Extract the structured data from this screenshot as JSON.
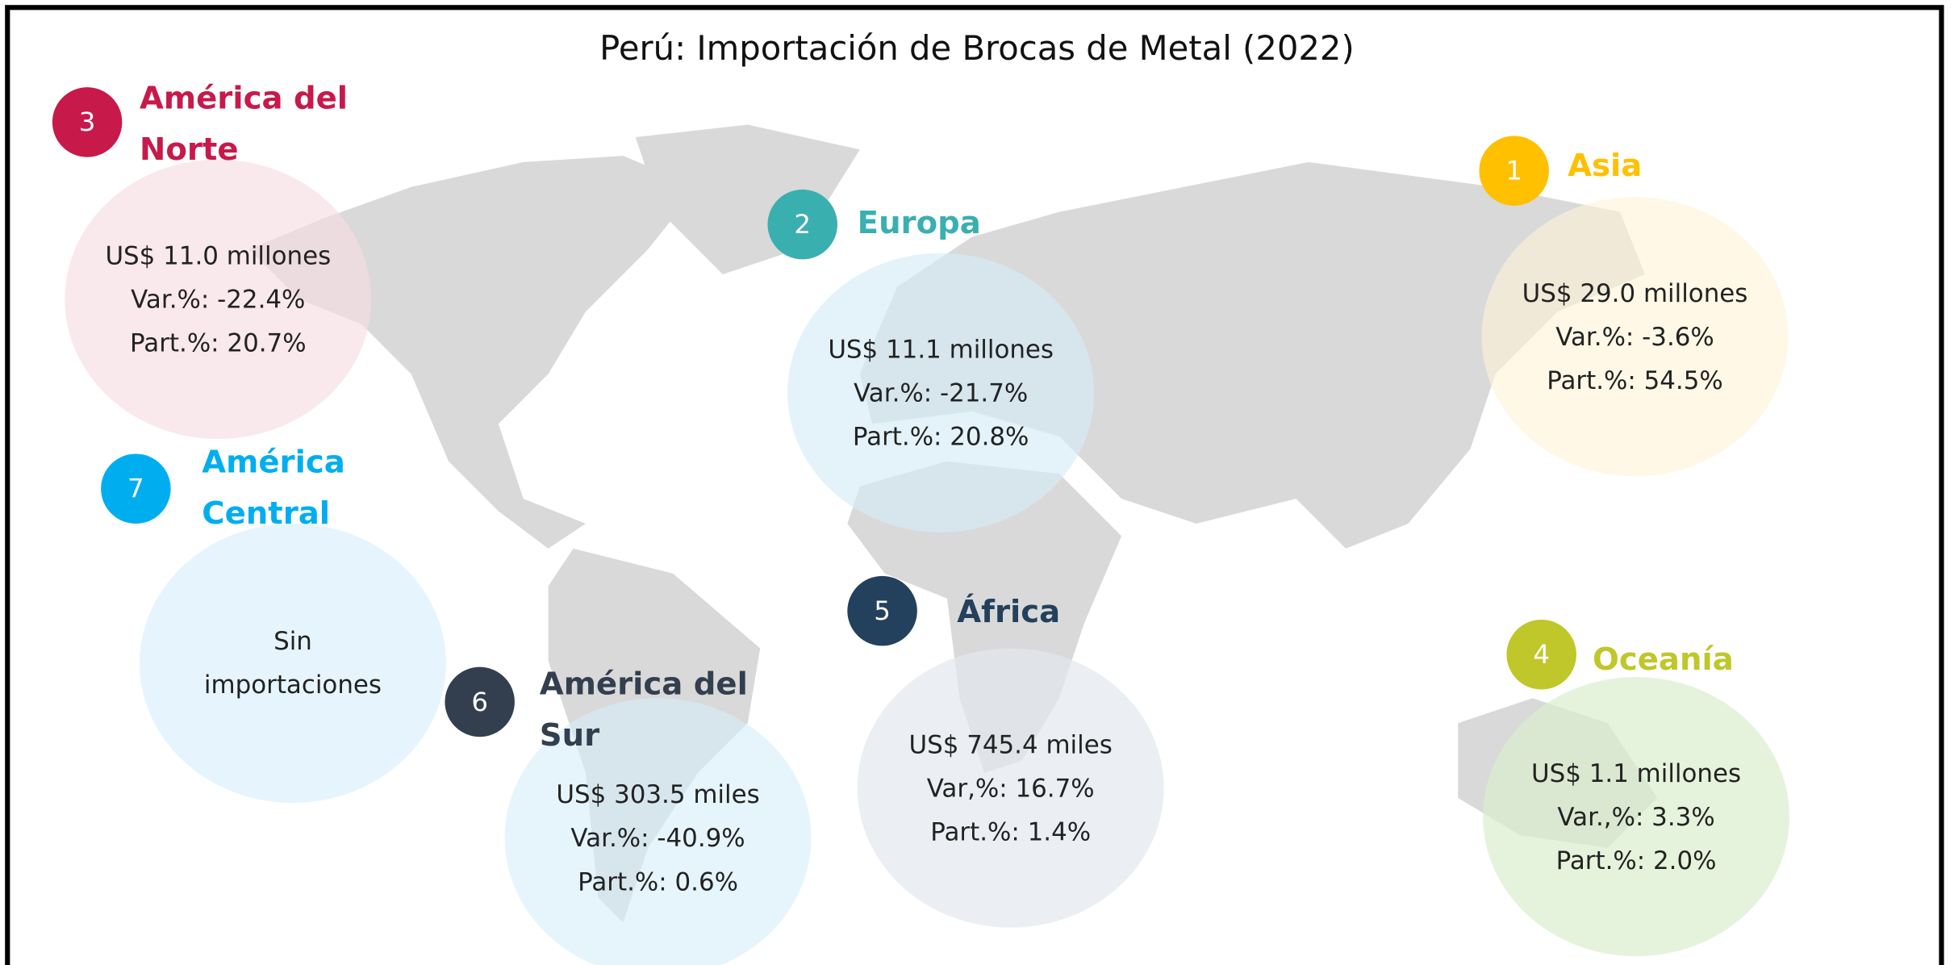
{
  "title": "Perú: Importación de Brocas de Metal (2022)",
  "regions": [
    {
      "rank": 1,
      "name": "Asia",
      "lines": [
        "US$ 29.0 millones",
        "Var.%: -3.6%",
        "Part.%: 54.5%"
      ]
    },
    {
      "rank": 2,
      "name": "Europa",
      "lines": [
        "US$ 11.1 millones",
        "Var.%: -21.7%",
        "Part.%: 20.8%"
      ]
    },
    {
      "rank": 3,
      "name": "América del Norte",
      "lines": [
        "US$ 11.0 millones",
        "Var.%: -22.4%",
        "Part.%: 20.7%"
      ]
    },
    {
      "rank": 4,
      "name": "Oceanía",
      "lines": [
        "US$ 1.1 millones",
        "Var.,%: 3.3%",
        "Part.%: 2.0%"
      ]
    },
    {
      "rank": 5,
      "name": "África",
      "lines": [
        "US$ 745.4 miles",
        "Var,%: 16.7%",
        "Part.%: 1.4%"
      ]
    },
    {
      "rank": 6,
      "name": "América del Sur",
      "lines": [
        "US$ 303.5 miles",
        "Var.%: -40.9%",
        "Part.%: 0.6%"
      ]
    },
    {
      "rank": 7,
      "name": "América Central",
      "lines": [
        "Sin",
        "importaciones"
      ]
    }
  ]
}
